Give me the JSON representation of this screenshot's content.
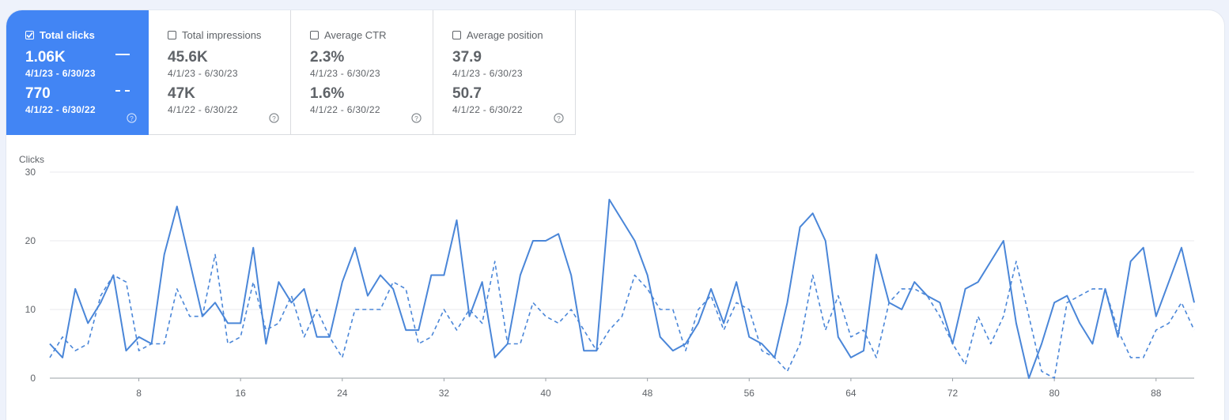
{
  "metrics": [
    {
      "label": "Total clicks",
      "checked": true,
      "current": "1.06K",
      "current_range": "4/1/23 - 6/30/23",
      "previous": "770",
      "previous_range": "4/1/22 - 6/30/22"
    },
    {
      "label": "Total impressions",
      "checked": false,
      "current": "45.6K",
      "current_range": "4/1/23 - 6/30/23",
      "previous": "47K",
      "previous_range": "4/1/22 - 6/30/22"
    },
    {
      "label": "Average CTR",
      "checked": false,
      "current": "2.3%",
      "current_range": "4/1/23 - 6/30/23",
      "previous": "1.6%",
      "previous_range": "4/1/22 - 6/30/22"
    },
    {
      "label": "Average position",
      "checked": false,
      "current": "37.9",
      "current_range": "4/1/23 - 6/30/23",
      "previous": "50.7",
      "previous_range": "4/1/22 - 6/30/22"
    }
  ],
  "colors": {
    "accent": "#4285f4",
    "line": "#4a86d8",
    "grid": "#e8eaed",
    "text": "#5f6368"
  },
  "chart_data": {
    "type": "line",
    "ylabel": "Clicks",
    "ylim": [
      0,
      30
    ],
    "yticks": [
      0,
      10,
      20,
      30
    ],
    "xlim": [
      1,
      91
    ],
    "xticks": [
      8,
      16,
      24,
      32,
      40,
      48,
      56,
      64,
      72,
      80,
      88
    ],
    "grid": true,
    "series": [
      {
        "style": "solid",
        "values": [
          5,
          3,
          13,
          8,
          11,
          15,
          4,
          6,
          5,
          18,
          25,
          17,
          9,
          11,
          8,
          8,
          19,
          5,
          14,
          11,
          13,
          6,
          6,
          14,
          19,
          12,
          15,
          13,
          7,
          7,
          15,
          15,
          23,
          9,
          14,
          3,
          5,
          15,
          20,
          20,
          21,
          15,
          4,
          4,
          26,
          23,
          20,
          15,
          6,
          4,
          5,
          8,
          13,
          8,
          14,
          6,
          5,
          3,
          11,
          22,
          24,
          20,
          6,
          3,
          4,
          18,
          11,
          10,
          14,
          12,
          11,
          5,
          13,
          14,
          17,
          20,
          8,
          0,
          5,
          11,
          12,
          8,
          5,
          13,
          6,
          17,
          19,
          9,
          14,
          19,
          11
        ]
      },
      {
        "style": "dashed",
        "values": [
          3,
          6,
          4,
          5,
          12,
          15,
          14,
          4,
          5,
          5,
          13,
          9,
          9,
          18,
          5,
          6,
          14,
          7,
          8,
          12,
          6,
          10,
          6,
          3,
          10,
          10,
          10,
          14,
          13,
          5,
          6,
          10,
          7,
          10,
          8,
          17,
          5,
          5,
          11,
          9,
          8,
          10,
          7,
          4,
          7,
          9,
          15,
          13,
          10,
          10,
          4,
          10,
          12,
          7,
          11,
          10,
          4,
          3,
          1,
          5,
          15,
          7,
          12,
          6,
          7,
          3,
          11,
          13,
          13,
          12,
          9,
          5,
          2,
          9,
          5,
          9,
          17,
          9,
          1,
          0,
          11,
          12,
          13,
          13,
          7,
          3,
          3,
          7,
          8,
          11,
          7
        ]
      }
    ]
  }
}
